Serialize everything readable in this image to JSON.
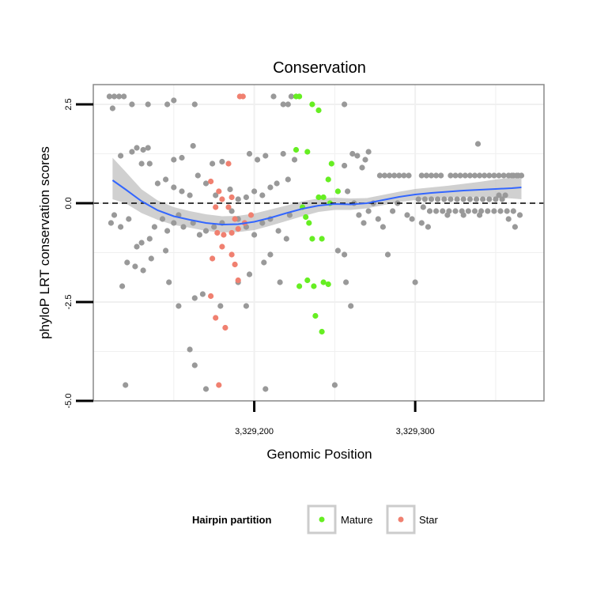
{
  "chart_data": {
    "type": "scatter",
    "title": "Conservation",
    "xlabel": "Genomic Position",
    "ylabel": "phyloP LRT conservation scores",
    "xlim": [
      3329100,
      3329380
    ],
    "ylim": [
      -5.0,
      3.0
    ],
    "x_ticks": [
      {
        "value": 3329200,
        "label": "3,329,200"
      },
      {
        "value": 3329300,
        "label": "3,329,300"
      }
    ],
    "y_ticks": [
      {
        "value": 2.5,
        "label": "2.5"
      },
      {
        "value": 0.0,
        "label": "0.0"
      },
      {
        "value": -2.5,
        "label": "-2.5"
      },
      {
        "value": -5.0,
        "label": "-5.0"
      }
    ],
    "grid": true,
    "reference_line": {
      "y": 0.0,
      "style": "dashed"
    },
    "colors": {
      "background": "#ffffff",
      "panel_border": "#888888",
      "grid": "#f0f0f0",
      "other": "#999999",
      "mature": "#66ee22",
      "star": "#f08070",
      "smooth": "#3366ff",
      "ribbon": "#c0c0c0"
    },
    "legend": {
      "title": "Hairpin partition",
      "placement": "bottom",
      "entries": [
        {
          "key": "mature",
          "label": "Mature"
        },
        {
          "key": "star",
          "label": "Star"
        }
      ]
    },
    "series": [
      {
        "key": "other",
        "points": [
          [
            3329110,
            2.7
          ],
          [
            3329112,
            2.4
          ],
          [
            3329113,
            2.7
          ],
          [
            3329116,
            2.7
          ],
          [
            3329119,
            2.7
          ],
          [
            3329124,
            2.5
          ],
          [
            3329134,
            2.5
          ],
          [
            3329146,
            2.5
          ],
          [
            3329150,
            2.6
          ],
          [
            3329163,
            2.5
          ],
          [
            3329212,
            2.7
          ],
          [
            3329218,
            2.5
          ],
          [
            3329221,
            2.5
          ],
          [
            3329223,
            2.7
          ],
          [
            3329256,
            2.5
          ],
          [
            3329117,
            1.2
          ],
          [
            3329124,
            1.3
          ],
          [
            3329127,
            1.4
          ],
          [
            3329131,
            1.35
          ],
          [
            3329134,
            1.4
          ],
          [
            3329130,
            1.0
          ],
          [
            3329135,
            1.0
          ],
          [
            3329150,
            1.1
          ],
          [
            3329155,
            1.15
          ],
          [
            3329162,
            1.45
          ],
          [
            3329174,
            1.0
          ],
          [
            3329180,
            1.05
          ],
          [
            3329197,
            1.25
          ],
          [
            3329202,
            1.1
          ],
          [
            3329207,
            1.2
          ],
          [
            3329218,
            1.25
          ],
          [
            3329225,
            1.1
          ],
          [
            3329261,
            1.25
          ],
          [
            3329264,
            1.2
          ],
          [
            3329267,
            0.9
          ],
          [
            3329269,
            1.1
          ],
          [
            3329271,
            1.3
          ],
          [
            3329256,
            0.95
          ],
          [
            3329111,
            -0.5
          ],
          [
            3329113,
            -0.3
          ],
          [
            3329117,
            -0.6
          ],
          [
            3329122,
            -0.4
          ],
          [
            3329127,
            -1.1
          ],
          [
            3329130,
            -1.0
          ],
          [
            3329135,
            -0.9
          ],
          [
            3329138,
            -0.6
          ],
          [
            3329143,
            -0.4
          ],
          [
            3329146,
            -0.7
          ],
          [
            3329150,
            -0.5
          ],
          [
            3329153,
            -0.3
          ],
          [
            3329156,
            -0.6
          ],
          [
            3329162,
            -0.5
          ],
          [
            3329166,
            -0.8
          ],
          [
            3329170,
            -0.7
          ],
          [
            3329175,
            -0.6
          ],
          [
            3329180,
            -0.5
          ],
          [
            3329186,
            -0.2
          ],
          [
            3329190,
            -0.4
          ],
          [
            3329195,
            -0.6
          ],
          [
            3329200,
            -0.8
          ],
          [
            3329205,
            -0.5
          ],
          [
            3329210,
            -0.4
          ],
          [
            3329215,
            -0.7
          ],
          [
            3329220,
            -0.9
          ],
          [
            3329222,
            -0.3
          ],
          [
            3329140,
            0.5
          ],
          [
            3329145,
            0.6
          ],
          [
            3329150,
            0.4
          ],
          [
            3329155,
            0.3
          ],
          [
            3329160,
            0.2
          ],
          [
            3329165,
            0.7
          ],
          [
            3329170,
            0.5
          ],
          [
            3329176,
            0.2
          ],
          [
            3329185,
            0.35
          ],
          [
            3329190,
            0.1
          ],
          [
            3329195,
            0.15
          ],
          [
            3329200,
            0.3
          ],
          [
            3329205,
            0.2
          ],
          [
            3329210,
            0.4
          ],
          [
            3329214,
            0.5
          ],
          [
            3329221,
            0.6
          ],
          [
            3329121,
            -1.5
          ],
          [
            3329126,
            -1.6
          ],
          [
            3329131,
            -1.7
          ],
          [
            3329136,
            -1.4
          ],
          [
            3329145,
            -1.2
          ],
          [
            3329147,
            -2.0
          ],
          [
            3329153,
            -2.6
          ],
          [
            3329163,
            -2.4
          ],
          [
            3329168,
            -2.3
          ],
          [
            3329179,
            -2.6
          ],
          [
            3329190,
            -2.0
          ],
          [
            3329195,
            -2.6
          ],
          [
            3329197,
            -1.8
          ],
          [
            3329206,
            -1.5
          ],
          [
            3329210,
            -1.3
          ],
          [
            3329216,
            -2.0
          ],
          [
            3329118,
            -2.1
          ],
          [
            3329120,
            -4.6
          ],
          [
            3329160,
            -3.7
          ],
          [
            3329163,
            -4.1
          ],
          [
            3329170,
            -4.7
          ],
          [
            3329207,
            -4.7
          ],
          [
            3329250,
            -4.6
          ],
          [
            3329257,
            -2.0
          ],
          [
            3329260,
            -2.6
          ],
          [
            3329252,
            -1.2
          ],
          [
            3329256,
            -1.3
          ],
          [
            3329258,
            0.3
          ],
          [
            3329262,
            0.0
          ],
          [
            3329265,
            -0.3
          ],
          [
            3329268,
            -0.5
          ],
          [
            3329271,
            -0.2
          ],
          [
            3329274,
            0.0
          ],
          [
            3329277,
            -0.4
          ],
          [
            3329280,
            -0.6
          ],
          [
            3329283,
            -1.3
          ],
          [
            3329286,
            -0.2
          ],
          [
            3329289,
            0.0
          ],
          [
            3329295,
            -0.3
          ],
          [
            3329298,
            -0.4
          ],
          [
            3329300,
            -2.0
          ],
          [
            3329278,
            0.7
          ],
          [
            3329281,
            0.7
          ],
          [
            3329284,
            0.7
          ],
          [
            3329287,
            0.7
          ],
          [
            3329290,
            0.7
          ],
          [
            3329293,
            0.7
          ],
          [
            3329296,
            0.7
          ],
          [
            3329304,
            0.7
          ],
          [
            3329307,
            0.7
          ],
          [
            3329310,
            0.7
          ],
          [
            3329313,
            0.7
          ],
          [
            3329316,
            0.7
          ],
          [
            3329322,
            0.7
          ],
          [
            3329325,
            0.7
          ],
          [
            3329328,
            0.7
          ],
          [
            3329331,
            0.7
          ],
          [
            3329334,
            0.7
          ],
          [
            3329337,
            0.7
          ],
          [
            3329340,
            0.7
          ],
          [
            3329343,
            0.7
          ],
          [
            3329346,
            0.7
          ],
          [
            3329349,
            0.7
          ],
          [
            3329352,
            0.7
          ],
          [
            3329355,
            0.7
          ],
          [
            3329358,
            0.7
          ],
          [
            3329361,
            0.7
          ],
          [
            3329364,
            0.7
          ],
          [
            3329302,
            0.1
          ],
          [
            3329306,
            0.1
          ],
          [
            3329310,
            0.1
          ],
          [
            3329314,
            0.1
          ],
          [
            3329318,
            0.1
          ],
          [
            3329322,
            0.1
          ],
          [
            3329326,
            0.1
          ],
          [
            3329330,
            0.1
          ],
          [
            3329334,
            0.1
          ],
          [
            3329338,
            0.1
          ],
          [
            3329342,
            0.1
          ],
          [
            3329346,
            0.1
          ],
          [
            3329350,
            0.1
          ],
          [
            3329354,
            0.1
          ],
          [
            3329305,
            -0.1
          ],
          [
            3329309,
            -0.2
          ],
          [
            3329313,
            -0.2
          ],
          [
            3329317,
            -0.2
          ],
          [
            3329321,
            -0.2
          ],
          [
            3329325,
            -0.2
          ],
          [
            3329329,
            -0.2
          ],
          [
            3329333,
            -0.2
          ],
          [
            3329337,
            -0.2
          ],
          [
            3329341,
            -0.2
          ],
          [
            3329345,
            -0.2
          ],
          [
            3329349,
            -0.2
          ],
          [
            3329353,
            -0.2
          ],
          [
            3329357,
            -0.2
          ],
          [
            3329361,
            -0.2
          ],
          [
            3329365,
            -0.3
          ],
          [
            3329304,
            -0.5
          ],
          [
            3329308,
            -0.6
          ],
          [
            3329320,
            -0.3
          ],
          [
            3329330,
            -0.3
          ],
          [
            3329340,
            -0.3
          ],
          [
            3329358,
            -0.4
          ],
          [
            3329362,
            -0.6
          ],
          [
            3329339,
            1.5
          ],
          [
            3329352,
            0.2
          ],
          [
            3329356,
            0.2
          ],
          [
            3329360,
            0.7
          ],
          [
            3329363,
            0.7
          ],
          [
            3329366,
            0.7
          ]
        ]
      },
      {
        "key": "mature",
        "points": [
          [
            3329226,
            2.7
          ],
          [
            3329228,
            2.7
          ],
          [
            3329236,
            2.5
          ],
          [
            3329240,
            2.35
          ],
          [
            3329226,
            1.35
          ],
          [
            3329233,
            1.3
          ],
          [
            3329240,
            0.15
          ],
          [
            3329243,
            0.15
          ],
          [
            3329246,
            0.6
          ],
          [
            3329248,
            1.0
          ],
          [
            3329252,
            0.3
          ],
          [
            3329247,
            0.0
          ],
          [
            3329230,
            -0.1
          ],
          [
            3329232,
            -0.35
          ],
          [
            3329234,
            -0.5
          ],
          [
            3329236,
            -0.9
          ],
          [
            3329242,
            -0.9
          ],
          [
            3329233,
            -1.95
          ],
          [
            3329237,
            -2.1
          ],
          [
            3329228,
            -2.1
          ],
          [
            3329243,
            -2.0
          ],
          [
            3329246,
            -2.05
          ],
          [
            3329238,
            -2.85
          ],
          [
            3329242,
            -3.25
          ]
        ]
      },
      {
        "key": "star",
        "points": [
          [
            3329191,
            2.7
          ],
          [
            3329193,
            2.7
          ],
          [
            3329184,
            1.0
          ],
          [
            3329173,
            0.55
          ],
          [
            3329178,
            0.3
          ],
          [
            3329180,
            0.1
          ],
          [
            3329186,
            0.15
          ],
          [
            3329176,
            -0.1
          ],
          [
            3329184,
            -0.1
          ],
          [
            3329188,
            -0.4
          ],
          [
            3329177,
            -0.75
          ],
          [
            3329181,
            -0.8
          ],
          [
            3329186,
            -0.75
          ],
          [
            3329190,
            -0.65
          ],
          [
            3329194,
            -0.5
          ],
          [
            3329198,
            -0.3
          ],
          [
            3329180,
            -1.1
          ],
          [
            3329186,
            -1.3
          ],
          [
            3329188,
            -1.55
          ],
          [
            3329174,
            -1.4
          ],
          [
            3329190,
            -1.95
          ],
          [
            3329173,
            -2.35
          ],
          [
            3329176,
            -2.9
          ],
          [
            3329182,
            -3.15
          ],
          [
            3329178,
            -4.6
          ]
        ]
      }
    ],
    "smooth": {
      "x": [
        3329112,
        3329120,
        3329130,
        3329140,
        3329150,
        3329160,
        3329170,
        3329180,
        3329190,
        3329200,
        3329210,
        3329220,
        3329230,
        3329240,
        3329250,
        3329260,
        3329270,
        3329280,
        3329290,
        3329300,
        3329310,
        3329320,
        3329330,
        3329340,
        3329350,
        3329360,
        3329366
      ],
      "y": [
        0.58,
        0.35,
        0.05,
        -0.18,
        -0.33,
        -0.42,
        -0.5,
        -0.54,
        -0.53,
        -0.47,
        -0.37,
        -0.25,
        -0.14,
        -0.06,
        -0.02,
        -0.03,
        0.0,
        0.08,
        0.16,
        0.22,
        0.26,
        0.29,
        0.32,
        0.34,
        0.36,
        0.38,
        0.4
      ],
      "lower": [
        0.1,
        0.0,
        -0.25,
        -0.42,
        -0.55,
        -0.62,
        -0.7,
        -0.74,
        -0.73,
        -0.68,
        -0.57,
        -0.45,
        -0.33,
        -0.22,
        -0.17,
        -0.17,
        -0.13,
        -0.05,
        0.03,
        0.08,
        0.12,
        0.14,
        0.15,
        0.15,
        0.14,
        0.12,
        0.1
      ],
      "upper": [
        1.15,
        0.8,
        0.35,
        0.07,
        -0.1,
        -0.2,
        -0.28,
        -0.33,
        -0.32,
        -0.26,
        -0.16,
        -0.06,
        0.05,
        0.12,
        0.14,
        0.12,
        0.13,
        0.21,
        0.29,
        0.36,
        0.4,
        0.44,
        0.49,
        0.54,
        0.6,
        0.65,
        0.72
      ]
    }
  }
}
